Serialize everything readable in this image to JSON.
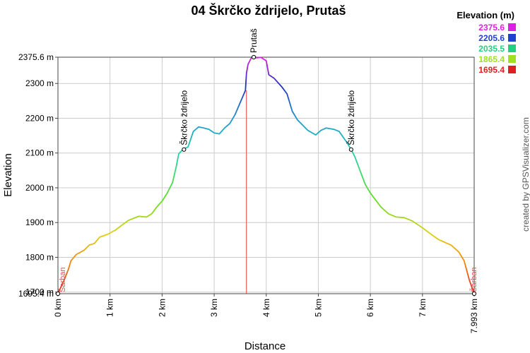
{
  "chart_data": {
    "type": "line",
    "title": "04 Škrčko ždrijelo, Prutaš",
    "xlabel": "Distance",
    "ylabel": "Elevation",
    "credit": "created by GPSVisualizer.com",
    "xlim": [
      0,
      7.993
    ],
    "ylim": [
      1695.4,
      2375.6
    ],
    "x_ticks": [
      "0 km",
      "1 km",
      "2 km",
      "3 km",
      "4 km",
      "5 km",
      "6 km",
      "7 km",
      "7.993 km"
    ],
    "x_tick_values": [
      0,
      1,
      2,
      3,
      4,
      5,
      6,
      7,
      7.993
    ],
    "y_ticks": [
      "1695.4 m",
      "1700 m",
      "1800 m",
      "1900 m",
      "2000 m",
      "2100 m",
      "2200 m",
      "2300 m",
      "2375.6 m"
    ],
    "y_tick_values": [
      1695.4,
      1700,
      1800,
      1900,
      2000,
      2100,
      2200,
      2300,
      2375.6
    ],
    "legend": {
      "title": "Elevation (m)",
      "entries": [
        {
          "label": "2375.6",
          "color": "#e020e0"
        },
        {
          "label": "2205.6",
          "color": "#2040d0"
        },
        {
          "label": "2035.5",
          "color": "#20d080"
        },
        {
          "label": "1865.4",
          "color": "#a0e020"
        },
        {
          "label": "1695.4",
          "color": "#e02020"
        }
      ]
    },
    "marker_x": 3.62,
    "waypoints": [
      {
        "label": "Šarban",
        "x": 0.0,
        "y": 1695.4,
        "kind": "start"
      },
      {
        "label": "Škrčko ždrijelo",
        "x": 2.42,
        "y": 2110,
        "kind": "wp"
      },
      {
        "label": "Prutaš",
        "x": 3.76,
        "y": 2375.6,
        "kind": "wp"
      },
      {
        "label": "Škrčko ždrijelo",
        "x": 5.63,
        "y": 2110,
        "kind": "wp"
      },
      {
        "label": "Šarban",
        "x": 7.993,
        "y": 1695.4,
        "kind": "end"
      }
    ],
    "profile": [
      [
        0.0,
        1695.4
      ],
      [
        0.05,
        1712
      ],
      [
        0.12,
        1735
      ],
      [
        0.2,
        1765
      ],
      [
        0.25,
        1790
      ],
      [
        0.35,
        1808
      ],
      [
        0.5,
        1820
      ],
      [
        0.6,
        1835
      ],
      [
        0.7,
        1840
      ],
      [
        0.8,
        1858
      ],
      [
        0.95,
        1866
      ],
      [
        1.1,
        1878
      ],
      [
        1.25,
        1895
      ],
      [
        1.35,
        1906
      ],
      [
        1.45,
        1912
      ],
      [
        1.55,
        1918
      ],
      [
        1.7,
        1916
      ],
      [
        1.8,
        1925
      ],
      [
        1.9,
        1945
      ],
      [
        2.0,
        1962
      ],
      [
        2.1,
        1985
      ],
      [
        2.2,
        2015
      ],
      [
        2.27,
        2060
      ],
      [
        2.32,
        2098
      ],
      [
        2.4,
        2110
      ],
      [
        2.5,
        2118
      ],
      [
        2.6,
        2162
      ],
      [
        2.7,
        2175
      ],
      [
        2.8,
        2172
      ],
      [
        2.9,
        2168
      ],
      [
        3.0,
        2158
      ],
      [
        3.1,
        2155
      ],
      [
        3.2,
        2172
      ],
      [
        3.3,
        2185
      ],
      [
        3.4,
        2210
      ],
      [
        3.5,
        2245
      ],
      [
        3.6,
        2280
      ],
      [
        3.62,
        2330
      ],
      [
        3.65,
        2355
      ],
      [
        3.72,
        2375.6
      ],
      [
        3.8,
        2374
      ],
      [
        3.9,
        2375
      ],
      [
        4.0,
        2365
      ],
      [
        4.05,
        2325
      ],
      [
        4.15,
        2315
      ],
      [
        4.3,
        2290
      ],
      [
        4.4,
        2270
      ],
      [
        4.5,
        2220
      ],
      [
        4.6,
        2195
      ],
      [
        4.7,
        2180
      ],
      [
        4.8,
        2165
      ],
      [
        4.95,
        2152
      ],
      [
        5.05,
        2165
      ],
      [
        5.15,
        2172
      ],
      [
        5.3,
        2168
      ],
      [
        5.4,
        2162
      ],
      [
        5.55,
        2130
      ],
      [
        5.63,
        2110
      ],
      [
        5.7,
        2090
      ],
      [
        5.8,
        2050
      ],
      [
        5.9,
        2010
      ],
      [
        6.0,
        1985
      ],
      [
        6.1,
        1965
      ],
      [
        6.2,
        1945
      ],
      [
        6.35,
        1925
      ],
      [
        6.5,
        1916
      ],
      [
        6.65,
        1914
      ],
      [
        6.8,
        1905
      ],
      [
        7.0,
        1885
      ],
      [
        7.15,
        1868
      ],
      [
        7.3,
        1852
      ],
      [
        7.4,
        1845
      ],
      [
        7.55,
        1835
      ],
      [
        7.7,
        1815
      ],
      [
        7.8,
        1790
      ],
      [
        7.9,
        1735
      ],
      [
        7.993,
        1695.4
      ]
    ]
  }
}
